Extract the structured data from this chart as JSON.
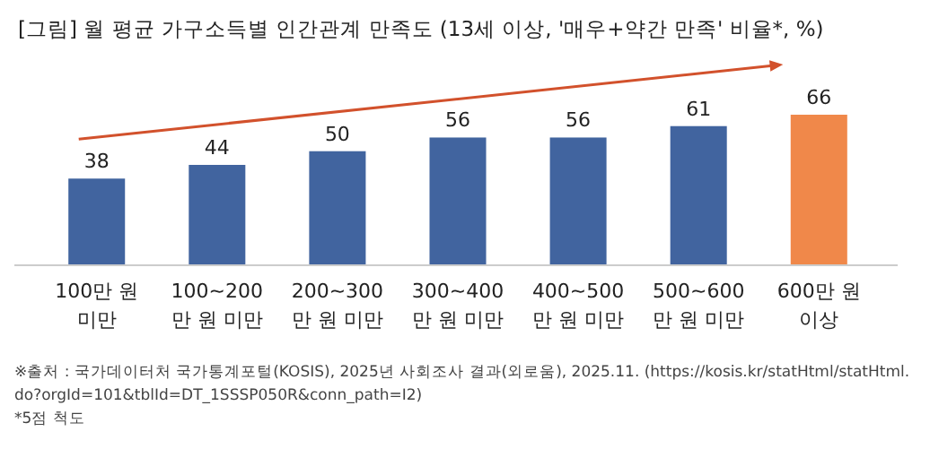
{
  "chart_data": {
    "type": "bar",
    "title": "[그림] 월 평균 가구소득별 인간관계 만족도 (13세 이상, '매우+약간 만족' 비율*, %)",
    "categories": [
      "100만 원\n미만",
      "100~200\n만 원 미만",
      "200~300\n만 원 미만",
      "300~400\n만 원 미만",
      "400~500\n만 원 미만",
      "500~600\n만 원 미만",
      "600만 원\n이상"
    ],
    "values": [
      38,
      44,
      50,
      56,
      56,
      61,
      66
    ],
    "colors": [
      "#41649f",
      "#41649f",
      "#41649f",
      "#41649f",
      "#41649f",
      "#41649f",
      "#f0884a"
    ],
    "data_labels": true,
    "annotations": [
      "※출처 : 국가데이터처 국가통계포털(KOSIS), 2025년 사회조사 결과(외로움), 2025.11. (https://kosis.kr/statHtml/statHtml.do?orgId=101&tblId=DT_1SSSP050R&conn_path=I2)",
      "*5점 척도"
    ]
  }
}
